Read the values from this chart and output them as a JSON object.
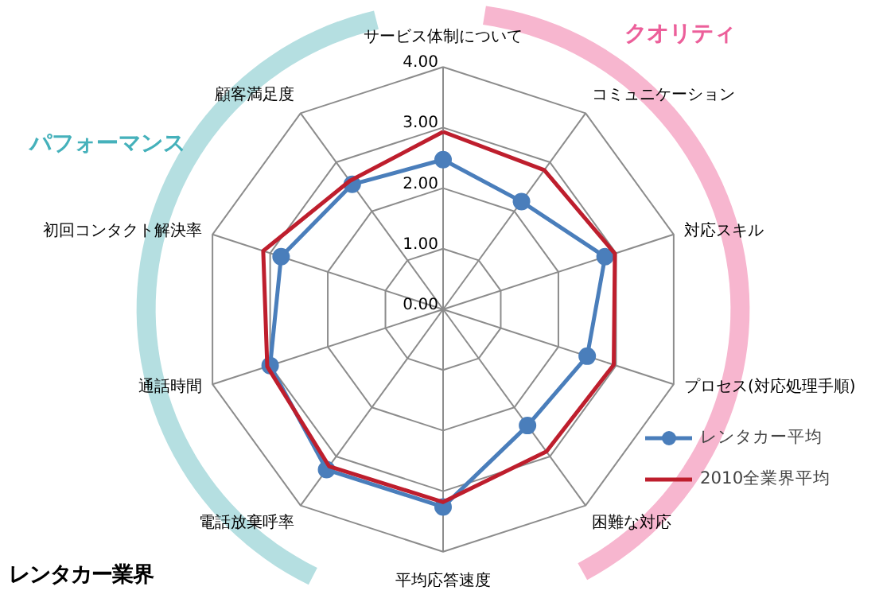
{
  "chart_data": {
    "type": "radar",
    "title": "レンタカー業界",
    "categories": [
      "サービス体制について",
      "コミュニケーション",
      "対応スキル",
      "プロセス(対応処理手順)",
      "困難な対応",
      "平均応答速度",
      "電話放棄呼率",
      "通話時間",
      "初回コンタクト解決率",
      "顧客満足度"
    ],
    "series": [
      {
        "name": "レンタカー平均",
        "color": "#4a7ebb",
        "marker": "circle",
        "values": [
          2.47,
          2.2,
          2.81,
          2.5,
          2.37,
          3.26,
          3.27,
          3.0,
          2.81,
          2.55
        ]
      },
      {
        "name": "2010全業界平均",
        "color": "#be1e2d",
        "marker": "none",
        "values": [
          2.93,
          2.84,
          2.98,
          2.96,
          2.9,
          3.18,
          3.2,
          3.05,
          3.12,
          2.62
        ]
      }
    ],
    "ylim": [
      0,
      4
    ],
    "yticks": [
      {
        "value": 0,
        "label": "0.00"
      },
      {
        "value": 1,
        "label": "1.00"
      },
      {
        "value": 2,
        "label": "2.00"
      },
      {
        "value": 3,
        "label": "3.00"
      },
      {
        "value": 4,
        "label": "4.00"
      }
    ],
    "grid": true,
    "legend": "right",
    "line_style": "solid",
    "annotations": [
      "クオリティ",
      "パフォーマンス"
    ]
  }
}
